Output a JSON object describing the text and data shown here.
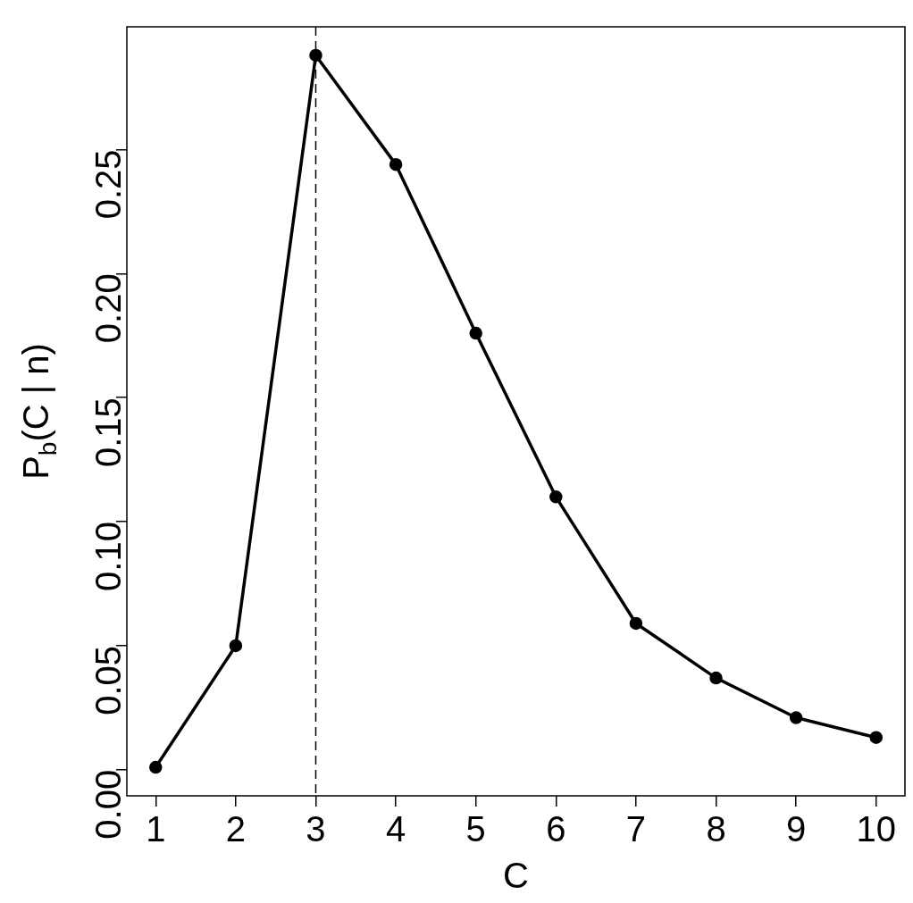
{
  "chart_data": {
    "type": "line",
    "xlabel": "C",
    "ylabel": "P$_{b}$(C | n)",
    "x": [
      1,
      2,
      3,
      4,
      5,
      6,
      7,
      8,
      9,
      10
    ],
    "series": [
      {
        "color": "#000000",
        "values": [
          0.001,
          0.05,
          0.288,
          0.244,
          0.176,
          0.11,
          0.059,
          0.037,
          0.021,
          0.013
        ]
      }
    ],
    "xlim": [
      0.64,
      10.36
    ],
    "ylim": [
      -0.0105,
      0.2995
    ],
    "xticks": [
      1,
      2,
      3,
      4,
      5,
      6,
      7,
      8,
      9,
      10
    ],
    "yticks": [
      {
        "value": 0,
        "label": "0.00"
      },
      {
        "value": 0.05,
        "label": "0.05"
      },
      {
        "value": 0.1,
        "label": "0.10"
      },
      {
        "value": 0.15,
        "label": "0.15"
      },
      {
        "value": 0.2,
        "label": "0.20"
      },
      {
        "value": 0.25,
        "label": "0.25"
      }
    ],
    "ref_lines": [
      {
        "axis": "x",
        "value": 3,
        "line_style": "dashed"
      }
    ],
    "marker": "circle",
    "line_style": "solid",
    "grid": false,
    "legend": false
  }
}
